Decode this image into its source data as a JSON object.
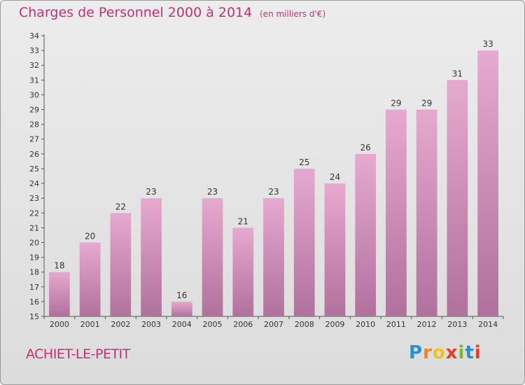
{
  "title": "Charges de Personnel 2000 à 2014",
  "subtitle": "(en milliers d'€)",
  "commune": "ACHIET-LE-PETIT",
  "logo": {
    "letters": [
      "P",
      "r",
      "o",
      "x",
      "i",
      "t",
      "i"
    ],
    "colors": [
      "#2a8fd0",
      "#e8862a",
      "#f2c21a",
      "#e0402a",
      "#7ab82e",
      "#2a8fd0",
      "#e0402a"
    ]
  },
  "colors": {
    "title": "#c2307a",
    "bar_top": "#e6a9cf",
    "bar_bottom": "#b0719d",
    "axis": "#555555"
  },
  "chart_data": {
    "type": "bar",
    "categories": [
      "2000",
      "2001",
      "2002",
      "2003",
      "2004",
      "2005",
      "2006",
      "2007",
      "2008",
      "2009",
      "2010",
      "2011",
      "2012",
      "2013",
      "2014"
    ],
    "values": [
      18,
      20,
      22,
      23,
      16,
      23,
      21,
      23,
      25,
      24,
      26,
      29,
      29,
      31,
      33
    ],
    "ylim": [
      15,
      34
    ],
    "yticks": [
      15,
      16,
      17,
      18,
      19,
      20,
      21,
      22,
      23,
      24,
      25,
      26,
      27,
      28,
      29,
      30,
      31,
      32,
      33,
      34
    ],
    "grid": false,
    "data_labels": true
  }
}
